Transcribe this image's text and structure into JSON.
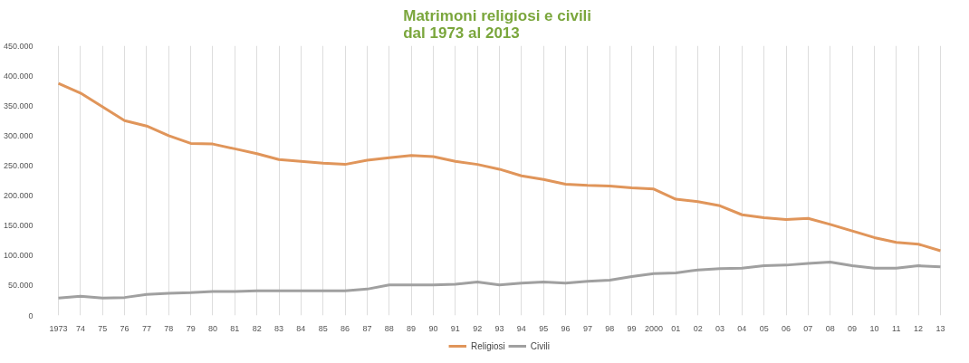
{
  "chart_data": {
    "type": "line",
    "title": "Matrimoni religiosi  e civili\ndal 1973 al 2013",
    "categories": [
      "1973",
      "74",
      "75",
      "76",
      "77",
      "78",
      "79",
      "80",
      "81",
      "82",
      "83",
      "84",
      "85",
      "86",
      "87",
      "88",
      "89",
      "90",
      "91",
      "92",
      "93",
      "94",
      "95",
      "96",
      "97",
      "98",
      "99",
      "2000",
      "01",
      "02",
      "03",
      "04",
      "05",
      "06",
      "07",
      "08",
      "09",
      "10",
      "11",
      "12",
      "13"
    ],
    "series": [
      {
        "name": "Religiosi",
        "color": "#e0955a",
        "values": [
          387000,
          371000,
          348000,
          325000,
          316000,
          300000,
          287000,
          286000,
          278000,
          270000,
          260000,
          257000,
          254000,
          252000,
          259000,
          263000,
          267000,
          265000,
          257000,
          252000,
          244000,
          233000,
          227000,
          219000,
          217000,
          216000,
          213000,
          211000,
          194000,
          190000,
          183000,
          168000,
          163000,
          160000,
          162000,
          152000,
          141000,
          130000,
          122000,
          119000,
          108000
        ]
      },
      {
        "name": "Civili",
        "color": "#a0a0a0",
        "values": [
          29000,
          32000,
          29000,
          30000,
          35000,
          37000,
          38000,
          40000,
          40000,
          41000,
          41000,
          41000,
          41000,
          41000,
          44000,
          51000,
          51000,
          51000,
          52000,
          56000,
          51000,
          54000,
          56000,
          54000,
          57000,
          59000,
          65000,
          70000,
          71000,
          76000,
          78000,
          79000,
          83000,
          84000,
          87000,
          89000,
          83000,
          79000,
          79000,
          83000,
          81000
        ]
      }
    ],
    "ylim": [
      0,
      450000
    ],
    "yticks": [
      {
        "value": 0,
        "label": "0"
      },
      {
        "value": 50000,
        "label": "50.000"
      },
      {
        "value": 100000,
        "label": "100.000"
      },
      {
        "value": 150000,
        "label": "150.000"
      },
      {
        "value": 200000,
        "label": "200.000"
      },
      {
        "value": 250000,
        "label": "250.000"
      },
      {
        "value": 300000,
        "label": "300.000"
      },
      {
        "value": 350000,
        "label": "350.000"
      },
      {
        "value": 400000,
        "label": "400.000"
      },
      {
        "value": 450000,
        "label": "450.000"
      }
    ],
    "grid": "x",
    "legend": "bottom",
    "marker": "none",
    "line_style": "solid"
  }
}
